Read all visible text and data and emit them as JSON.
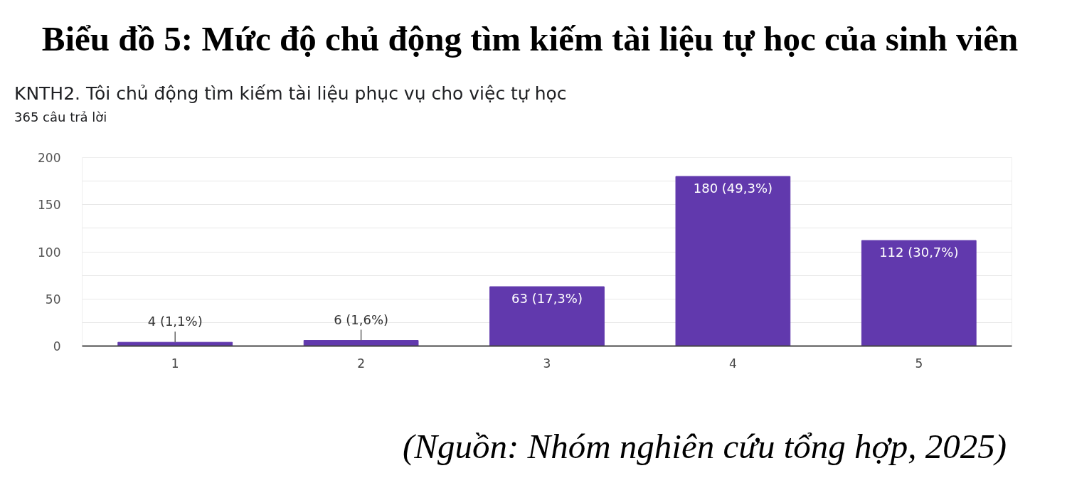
{
  "chart_data": {
    "type": "bar",
    "title": "Biểu đồ 5: Mức độ chủ động tìm kiếm tài liệu tự học của sinh viên",
    "subtitle": "KNTH2. Tôi chủ động tìm kiếm tài liệu phục vụ cho việc tự học",
    "annotations": [
      "365 câu trả lời",
      "(Nguồn: Nhóm nghiên cứu tổng hợp, 2025)"
    ],
    "categories": [
      "1",
      "2",
      "3",
      "4",
      "5"
    ],
    "values": [
      4,
      6,
      63,
      180,
      112
    ],
    "color": "#6139ad",
    "value_labels": [
      "4 (1,1%)",
      "6 (1,6%)",
      "63 (17,3%)",
      "180 (49,3%)",
      "112 (30,7%)"
    ],
    "ylim": [
      0,
      200
    ],
    "yticks": [
      0,
      {
        "value": 25,
        "label": null
      },
      50,
      {
        "value": 75,
        "label": null
      },
      100,
      {
        "value": 125,
        "label": null
      },
      150,
      {
        "value": 175,
        "label": null
      },
      200
    ],
    "grid": "y"
  }
}
